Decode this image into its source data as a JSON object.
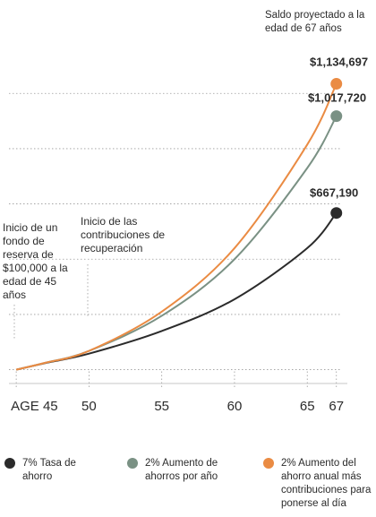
{
  "chart_data": {
    "type": "line",
    "title": "",
    "x": [
      45,
      47,
      50,
      55,
      60,
      65,
      67
    ],
    "x_ticks": [
      {
        "value": 45,
        "label": "AGE 45"
      },
      {
        "value": 50,
        "label": "50"
      },
      {
        "value": 55,
        "label": "55"
      },
      {
        "value": 60,
        "label": "60"
      },
      {
        "value": 65,
        "label": "65"
      },
      {
        "value": 67,
        "label": "67"
      }
    ],
    "xlim": [
      44.5,
      68
    ],
    "ylim": [
      50000,
      1250000
    ],
    "grid": "horizontal-dotted",
    "series": [
      {
        "name": "7% Tasa de ahorro",
        "color": "#2b2b2b",
        "values": [
          100000,
          124000,
          158000,
          240000,
          355000,
          540000,
          667190
        ],
        "end_label": "$667,190"
      },
      {
        "name": "2% Aumento de ahorros por año",
        "color": "#7a9184",
        "values": [
          100000,
          125000,
          168000,
          295000,
          500000,
          830000,
          1017720
        ],
        "end_label": "$1,017,720"
      },
      {
        "name": "2% Aumento del ahorro anual más contribuciones para ponerse al día",
        "color": "#ea8b43",
        "values": [
          100000,
          125000,
          168000,
          310000,
          540000,
          915000,
          1134697
        ],
        "end_label": "$1,134,697"
      }
    ],
    "annotations": [
      {
        "text": "Saldo proyectado a la edad de 67 años"
      },
      {
        "text": "Inicio de un fondo de reserva de $100,000 a la edad de 45 años",
        "x": 45
      },
      {
        "text": "Inicio de las contribuciones de recuperación",
        "x": 50
      }
    ]
  }
}
